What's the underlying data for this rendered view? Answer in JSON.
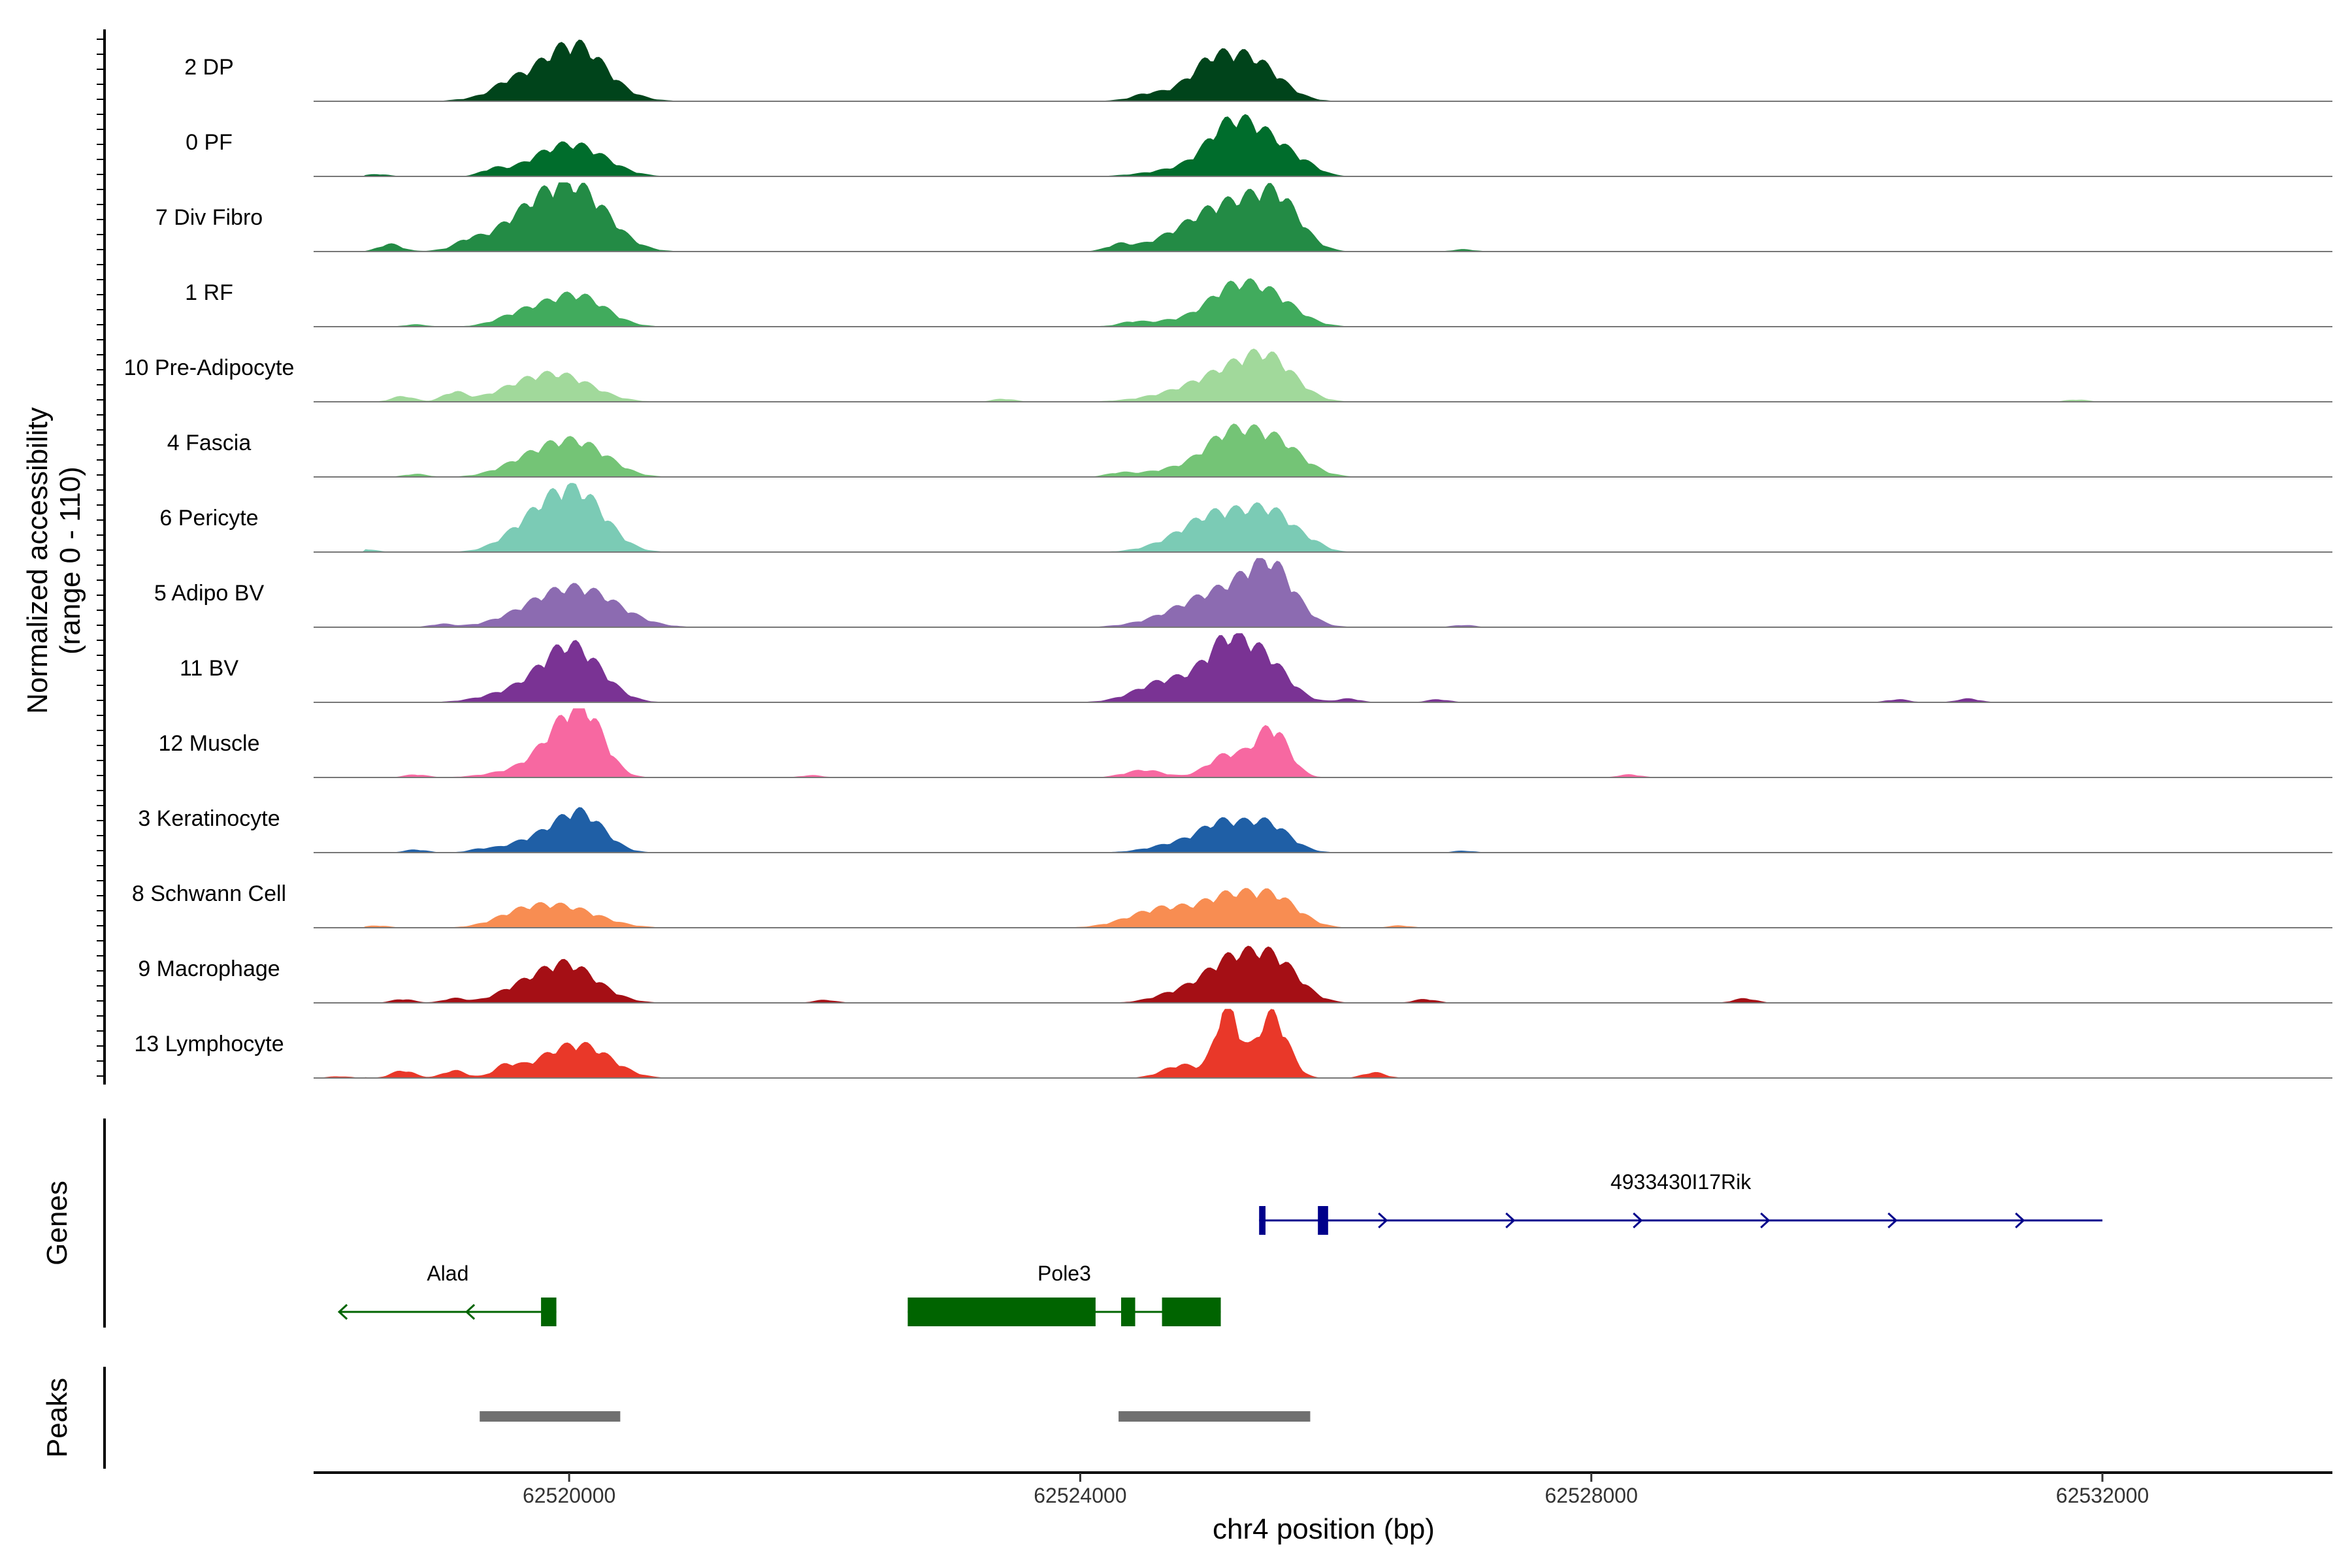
{
  "chart_data": {
    "type": "area",
    "title": "",
    "ylabel_line1": "Normalized accessibility",
    "ylabel_line2": "(range 0 - 110)",
    "yrange": [
      0,
      110
    ],
    "xlabel": "chr4 position (bp)",
    "chromosome": "chr4",
    "xlim": [
      62518000,
      62533800
    ],
    "xticks": [
      {
        "value": 62520000,
        "label": "62520000"
      },
      {
        "value": 62524000,
        "label": "62524000"
      },
      {
        "value": 62528000,
        "label": "62528000"
      },
      {
        "value": 62532000,
        "label": "62532000"
      }
    ],
    "tracks": [
      {
        "name": "2 DP",
        "color": "#00441b",
        "peaks": [
          [
            62519900,
            95,
            320
          ],
          [
            62520100,
            70,
            200
          ],
          [
            62525100,
            70,
            200
          ],
          [
            62525400,
            80,
            200
          ],
          [
            62524900,
            30,
            300
          ]
        ],
        "bumps": [
          [
            62519500,
            12
          ],
          [
            62525000,
            15
          ],
          [
            62524500,
            8
          ]
        ]
      },
      {
        "name": "0 PF",
        "color": "#006d2c",
        "peaks": [
          [
            62519900,
            60,
            250
          ],
          [
            62520150,
            40,
            220
          ],
          [
            62525150,
            90,
            170
          ],
          [
            62525450,
            100,
            220
          ],
          [
            62524900,
            25,
            300
          ]
        ],
        "bumps": [
          [
            62519400,
            15
          ],
          [
            62518500,
            6
          ],
          [
            62525800,
            8
          ]
        ]
      },
      {
        "name": "7 Div Fibro",
        "color": "#238b45",
        "peaks": [
          [
            62519950,
            110,
            280
          ],
          [
            62519650,
            55,
            300
          ],
          [
            62520150,
            60,
            220
          ],
          [
            62525550,
            120,
            180
          ],
          [
            62525200,
            90,
            250
          ],
          [
            62524900,
            50,
            300
          ]
        ],
        "bumps": [
          [
            62518600,
            20
          ],
          [
            62519200,
            15
          ],
          [
            62524300,
            15
          ],
          [
            62527000,
            6
          ]
        ]
      },
      {
        "name": "1 RF",
        "color": "#41ab5d",
        "peaks": [
          [
            62519950,
            55,
            230
          ],
          [
            62519600,
            25,
            180
          ],
          [
            62520150,
            40,
            200
          ],
          [
            62525150,
            60,
            170
          ],
          [
            62525450,
            90,
            220
          ],
          [
            62524850,
            20,
            300
          ]
        ],
        "bumps": [
          [
            62518800,
            6
          ],
          [
            62524400,
            8
          ]
        ]
      },
      {
        "name": "10 Pre-Adipocyte",
        "color": "#a1d99b",
        "peaks": [
          [
            62519950,
            65,
            250
          ],
          [
            62519600,
            30,
            220
          ],
          [
            62525200,
            65,
            250
          ],
          [
            62525500,
            90,
            200
          ],
          [
            62524850,
            25,
            300
          ]
        ],
        "bumps": [
          [
            62518700,
            15
          ],
          [
            62519100,
            25
          ],
          [
            62523400,
            8
          ],
          [
            62531800,
            6
          ]
        ]
      },
      {
        "name": "4 Fascia",
        "color": "#74c476",
        "peaks": [
          [
            62519950,
            80,
            250
          ],
          [
            62519600,
            20,
            200
          ],
          [
            62520200,
            30,
            200
          ],
          [
            62525150,
            80,
            180
          ],
          [
            62525500,
            100,
            220
          ],
          [
            62524850,
            25,
            300
          ]
        ],
        "bumps": [
          [
            62518800,
            8
          ],
          [
            62524300,
            8
          ]
        ]
      },
      {
        "name": "6 Pericyte",
        "color": "#7bcbb5",
        "peaks": [
          [
            62519950,
            115,
            230
          ],
          [
            62520150,
            70,
            200
          ],
          [
            62519650,
            40,
            200
          ],
          [
            62525100,
            75,
            220
          ],
          [
            62525500,
            100,
            200
          ],
          [
            62524850,
            35,
            250
          ]
        ],
        "bumps": [
          [
            62518400,
            8
          ],
          [
            62525850,
            8
          ]
        ]
      },
      {
        "name": "5 Adipo BV",
        "color": "#8c6bb1",
        "peaks": [
          [
            62519950,
            90,
            320
          ],
          [
            62520250,
            30,
            250
          ],
          [
            62525200,
            80,
            300
          ],
          [
            62525500,
            125,
            180
          ],
          [
            62524850,
            30,
            300
          ]
        ],
        "bumps": [
          [
            62519000,
            8
          ],
          [
            62527000,
            6
          ]
        ]
      },
      {
        "name": "11 BV",
        "color": "#7a3394",
        "peaks": [
          [
            62519950,
            100,
            200
          ],
          [
            62520150,
            65,
            200
          ],
          [
            62519600,
            30,
            250
          ],
          [
            62525150,
            115,
            160
          ],
          [
            62525450,
            105,
            180
          ],
          [
            62524900,
            50,
            300
          ],
          [
            62524600,
            25,
            200
          ]
        ],
        "bumps": [
          [
            62518200,
            8
          ],
          [
            62526100,
            10
          ],
          [
            62526800,
            8
          ],
          [
            62530400,
            8
          ],
          [
            62530950,
            10
          ]
        ]
      },
      {
        "name": "12 Muscle",
        "color": "#f768a1",
        "peaks": [
          [
            62519950,
            105,
            180
          ],
          [
            62520150,
            120,
            150
          ],
          [
            62519650,
            20,
            250
          ],
          [
            62525150,
            60,
            150
          ],
          [
            62525500,
            130,
            130
          ],
          [
            62524500,
            20,
            150
          ]
        ],
        "bumps": [
          [
            62518800,
            8
          ],
          [
            62521900,
            6
          ],
          [
            62528300,
            8
          ]
        ]
      },
      {
        "name": "3 Keratinocyte",
        "color": "#1f5fa6",
        "peaks": [
          [
            62520100,
            90,
            180
          ],
          [
            62519800,
            40,
            250
          ],
          [
            62525100,
            55,
            150
          ],
          [
            62525450,
            80,
            180
          ],
          [
            62524850,
            30,
            250
          ]
        ],
        "bumps": [
          [
            62518800,
            8
          ],
          [
            62519300,
            6
          ],
          [
            62527000,
            5
          ]
        ]
      },
      {
        "name": "8 Schwann Cell",
        "color": "#f88d52",
        "peaks": [
          [
            62519950,
            55,
            280
          ],
          [
            62519600,
            25,
            200
          ],
          [
            62525150,
            55,
            170
          ],
          [
            62525500,
            85,
            200
          ],
          [
            62524600,
            40,
            250
          ],
          [
            62524900,
            25,
            250
          ]
        ],
        "bumps": [
          [
            62518500,
            6
          ],
          [
            62526500,
            6
          ]
        ]
      },
      {
        "name": "9 Macrophage",
        "color": "#a50f15",
        "peaks": [
          [
            62519950,
            90,
            200
          ],
          [
            62519600,
            35,
            180
          ],
          [
            62520200,
            25,
            200
          ],
          [
            62525150,
            90,
            180
          ],
          [
            62525500,
            120,
            200
          ],
          [
            62524800,
            30,
            200
          ]
        ],
        "bumps": [
          [
            62518700,
            10
          ],
          [
            62519100,
            12
          ],
          [
            62522000,
            8
          ],
          [
            62526700,
            10
          ],
          [
            62529200,
            12
          ]
        ]
      },
      {
        "name": "13 Lymphocyte",
        "color": "#e93829",
        "peaks": [
          [
            62519950,
            65,
            250
          ],
          [
            62520200,
            40,
            200
          ],
          [
            62525150,
            190,
            90
          ],
          [
            62525500,
            170,
            120
          ],
          [
            62524800,
            35,
            150
          ]
        ],
        "bumps": [
          [
            62518200,
            30
          ],
          [
            62518700,
            20
          ],
          [
            62519100,
            20
          ],
          [
            62519500,
            25
          ],
          [
            62526300,
            15
          ]
        ]
      }
    ],
    "genes": [
      {
        "name": "4933430I17Rik",
        "strand": "+",
        "color": "#00008b",
        "start": 62525400,
        "end": 62532000,
        "exons": [
          [
            62525400,
            62525450
          ],
          [
            62525860,
            62525940
          ]
        ],
        "row": 1
      },
      {
        "name": "Alad",
        "strand": "-",
        "color": "#006400",
        "start": 62518200,
        "end": 62519900,
        "exons": [
          [
            62519780,
            62519900
          ]
        ],
        "row": 2
      },
      {
        "name": "Pole3",
        "strand": "",
        "color": "#006400",
        "start": 62522650,
        "end": 62525100,
        "exons": [
          [
            62522650,
            62524120
          ],
          [
            62524320,
            62524430
          ],
          [
            62524640,
            62525100
          ]
        ],
        "row": 2
      }
    ],
    "peaks_track": [
      {
        "start": 62519300,
        "end": 62520400,
        "color": "#707070"
      },
      {
        "start": 62524300,
        "end": 62525800,
        "color": "#707070"
      }
    ],
    "genes_label": "Genes",
    "peaks_label": "Peaks"
  }
}
